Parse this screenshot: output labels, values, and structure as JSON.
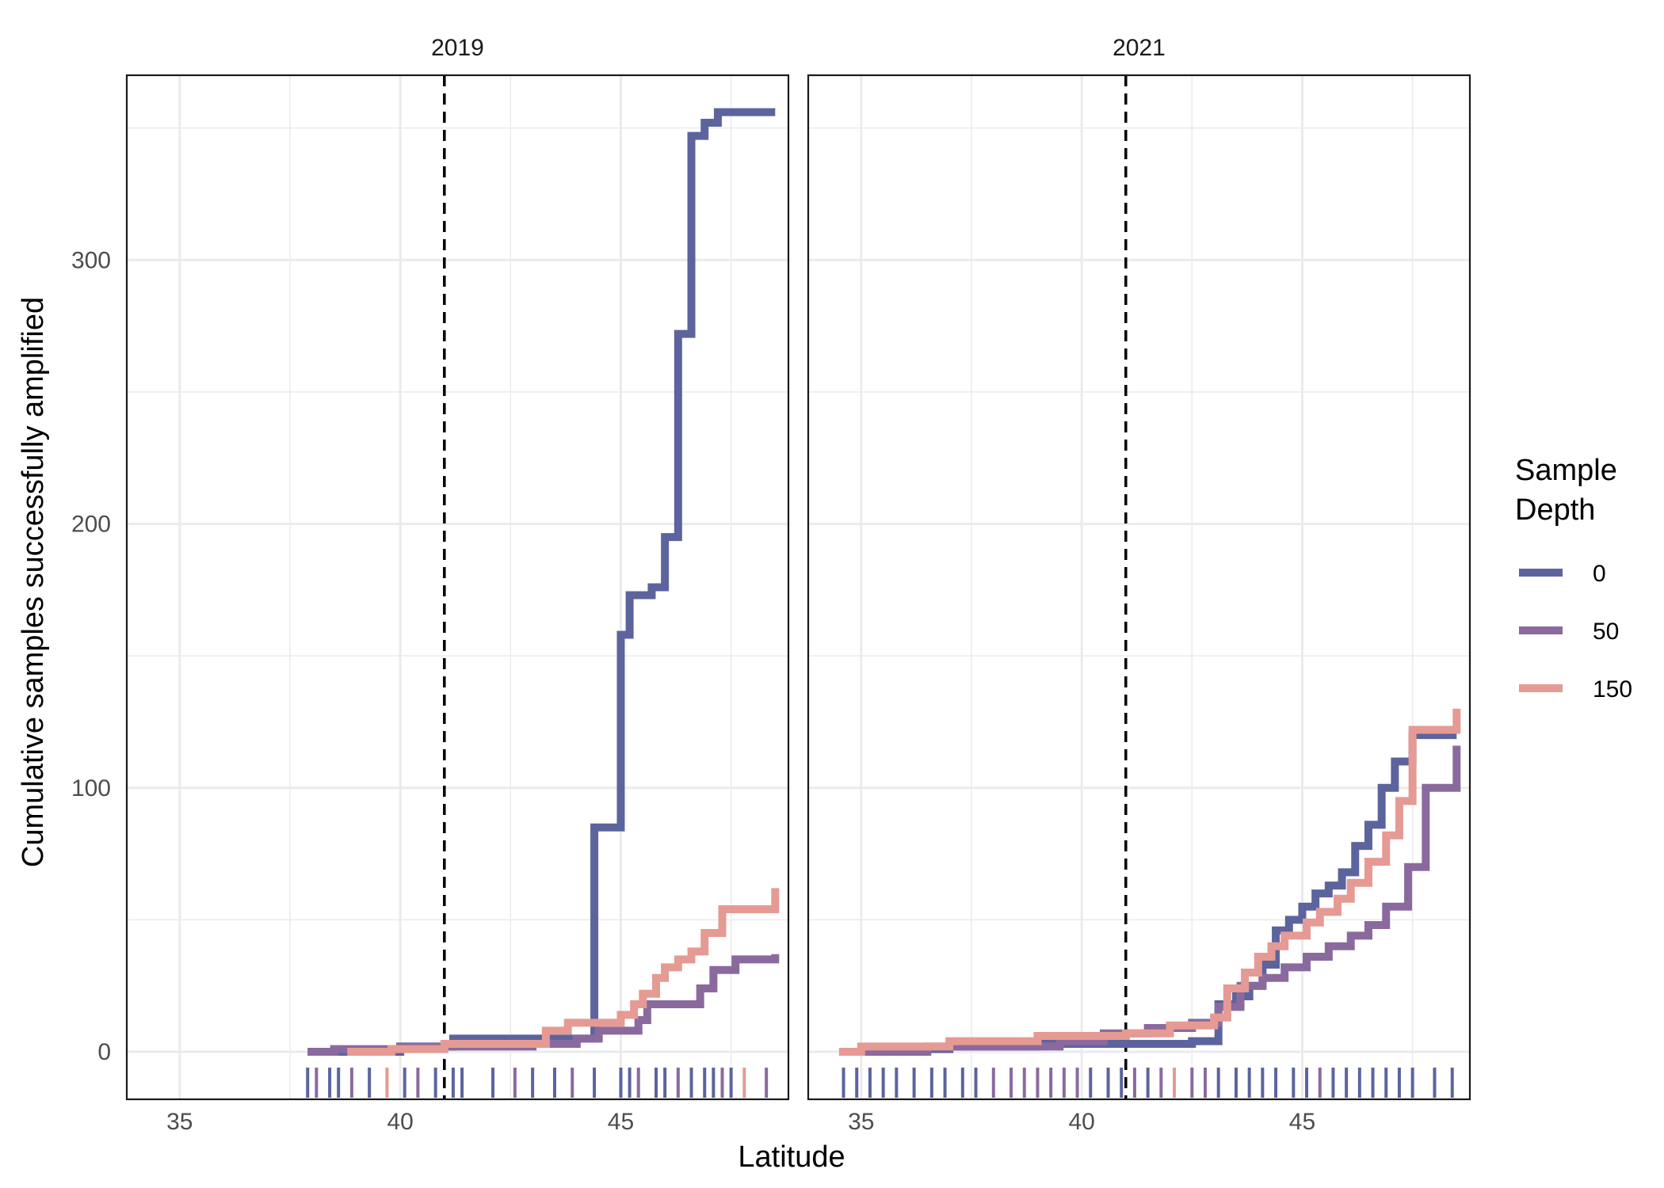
{
  "chart_data": {
    "type": "line",
    "xlabel": "Latitude",
    "ylabel": "Cumulative samples successfully amplified",
    "xlim": [
      33.8,
      48.8
    ],
    "ylim": [
      -18,
      370
    ],
    "x_ticks": [
      35,
      40,
      45
    ],
    "y_ticks": [
      0,
      100,
      200,
      300
    ],
    "grid": true,
    "reference_line": {
      "x": 41.0,
      "style": "dashed",
      "color": "#000000"
    },
    "legend": {
      "title_lines": [
        "Sample",
        "Depth"
      ],
      "position": "right",
      "entries": [
        {
          "name": "0",
          "color": "#5c649e"
        },
        {
          "name": "50",
          "color": "#8a6a9e"
        },
        {
          "name": "150",
          "color": "#e59a94"
        }
      ]
    },
    "panels": [
      {
        "title": "2019",
        "series": [
          {
            "name": "0",
            "color": "#5c649e",
            "step": true,
            "x": [
              37.9,
              40.0,
              41.2,
              44.4,
              45.0,
              45.2,
              45.7,
              46.0,
              46.3,
              46.6,
              46.9,
              47.2,
              48.5
            ],
            "y": [
              0,
              2,
              5,
              85,
              158,
              173,
              176,
              195,
              272,
              347,
              352,
              356,
              356
            ]
          },
          {
            "name": "50",
            "color": "#8a6a9e",
            "step": true,
            "x": [
              37.9,
              38.5,
              40.0,
              43.0,
              44.0,
              44.5,
              45.4,
              45.6,
              46.8,
              47.1,
              47.6,
              48.5
            ],
            "y": [
              0,
              1,
              2,
              3,
              5,
              8,
              12,
              18,
              24,
              31,
              35,
              37
            ]
          },
          {
            "name": "150",
            "color": "#e59a94",
            "step": true,
            "x": [
              38.8,
              39.8,
              41.0,
              43.3,
              43.8,
              45.0,
              45.3,
              45.5,
              45.8,
              46.0,
              46.3,
              46.6,
              46.9,
              47.3,
              48.5
            ],
            "y": [
              0,
              1,
              3,
              8,
              11,
              14,
              18,
              22,
              28,
              32,
              35,
              38,
              45,
              54,
              62
            ]
          }
        ],
        "rug": [
          {
            "x": 37.9,
            "depth": "0"
          },
          {
            "x": 38.1,
            "depth": "50"
          },
          {
            "x": 38.4,
            "depth": "0"
          },
          {
            "x": 38.6,
            "depth": "0"
          },
          {
            "x": 38.9,
            "depth": "50"
          },
          {
            "x": 39.3,
            "depth": "0"
          },
          {
            "x": 39.7,
            "depth": "150"
          },
          {
            "x": 40.1,
            "depth": "0"
          },
          {
            "x": 40.4,
            "depth": "50"
          },
          {
            "x": 40.8,
            "depth": "0"
          },
          {
            "x": 41.2,
            "depth": "0"
          },
          {
            "x": 41.4,
            "depth": "0"
          },
          {
            "x": 42.1,
            "depth": "0"
          },
          {
            "x": 42.6,
            "depth": "50"
          },
          {
            "x": 43.0,
            "depth": "0"
          },
          {
            "x": 43.5,
            "depth": "0"
          },
          {
            "x": 43.9,
            "depth": "50"
          },
          {
            "x": 44.4,
            "depth": "0"
          },
          {
            "x": 45.0,
            "depth": "0"
          },
          {
            "x": 45.2,
            "depth": "0"
          },
          {
            "x": 45.4,
            "depth": "50"
          },
          {
            "x": 45.8,
            "depth": "0"
          },
          {
            "x": 46.0,
            "depth": "0"
          },
          {
            "x": 46.3,
            "depth": "50"
          },
          {
            "x": 46.6,
            "depth": "0"
          },
          {
            "x": 46.9,
            "depth": "0"
          },
          {
            "x": 47.1,
            "depth": "0"
          },
          {
            "x": 47.3,
            "depth": "50"
          },
          {
            "x": 47.5,
            "depth": "0"
          },
          {
            "x": 47.8,
            "depth": "150"
          },
          {
            "x": 48.3,
            "depth": "50"
          }
        ]
      },
      {
        "title": "2021",
        "series": [
          {
            "name": "0",
            "color": "#5c649e",
            "step": true,
            "x": [
              34.5,
              35.5,
              37.0,
              39.0,
              42.5,
              43.1,
              43.5,
              43.8,
              44.1,
              44.4,
              44.7,
              45.0,
              45.3,
              45.6,
              45.9,
              46.2,
              46.5,
              46.8,
              47.1,
              47.5,
              48.5
            ],
            "y": [
              0,
              1,
              2,
              3,
              4,
              18,
              21,
              25,
              33,
              46,
              50,
              55,
              60,
              63,
              68,
              78,
              86,
              100,
              110,
              120,
              120
            ]
          },
          {
            "name": "50",
            "color": "#8a6a9e",
            "step": true,
            "x": [
              34.5,
              36.5,
              39.5,
              40.5,
              41.5,
              42.5,
              43.1,
              43.6,
              44.1,
              44.6,
              45.1,
              45.6,
              46.1,
              46.5,
              46.9,
              47.4,
              47.8,
              48.5
            ],
            "y": [
              0,
              2,
              4,
              7,
              9,
              11,
              17,
              25,
              28,
              32,
              36,
              40,
              44,
              48,
              55,
              70,
              100,
              116
            ]
          },
          {
            "name": "150",
            "color": "#e59a94",
            "step": true,
            "x": [
              34.5,
              35.0,
              37.0,
              39.0,
              41.0,
              42.0,
              43.0,
              43.3,
              43.7,
              44.0,
              44.3,
              44.6,
              45.1,
              45.4,
              45.8,
              46.1,
              46.5,
              46.9,
              47.2,
              47.5,
              48.5
            ],
            "y": [
              0,
              2,
              4,
              6,
              7,
              10,
              13,
              24,
              30,
              36,
              40,
              44,
              49,
              53,
              58,
              64,
              72,
              82,
              95,
              122,
              130
            ]
          }
        ],
        "rug": [
          {
            "x": 34.6,
            "depth": "0"
          },
          {
            "x": 34.9,
            "depth": "0"
          },
          {
            "x": 35.2,
            "depth": "0"
          },
          {
            "x": 35.5,
            "depth": "0"
          },
          {
            "x": 35.8,
            "depth": "0"
          },
          {
            "x": 36.2,
            "depth": "0"
          },
          {
            "x": 36.6,
            "depth": "0"
          },
          {
            "x": 36.9,
            "depth": "0"
          },
          {
            "x": 37.3,
            "depth": "0"
          },
          {
            "x": 37.6,
            "depth": "0"
          },
          {
            "x": 38.0,
            "depth": "50"
          },
          {
            "x": 38.4,
            "depth": "50"
          },
          {
            "x": 38.7,
            "depth": "50"
          },
          {
            "x": 39.0,
            "depth": "50"
          },
          {
            "x": 39.3,
            "depth": "50"
          },
          {
            "x": 39.6,
            "depth": "50"
          },
          {
            "x": 39.9,
            "depth": "50"
          },
          {
            "x": 40.2,
            "depth": "0"
          },
          {
            "x": 40.6,
            "depth": "0"
          },
          {
            "x": 40.9,
            "depth": "0"
          },
          {
            "x": 41.2,
            "depth": "50"
          },
          {
            "x": 41.5,
            "depth": "0"
          },
          {
            "x": 41.8,
            "depth": "50"
          },
          {
            "x": 42.1,
            "depth": "150"
          },
          {
            "x": 42.5,
            "depth": "50"
          },
          {
            "x": 42.8,
            "depth": "50"
          },
          {
            "x": 43.1,
            "depth": "0"
          },
          {
            "x": 43.5,
            "depth": "0"
          },
          {
            "x": 43.8,
            "depth": "0"
          },
          {
            "x": 44.1,
            "depth": "0"
          },
          {
            "x": 44.4,
            "depth": "0"
          },
          {
            "x": 44.8,
            "depth": "0"
          },
          {
            "x": 45.1,
            "depth": "0"
          },
          {
            "x": 45.4,
            "depth": "50"
          },
          {
            "x": 45.7,
            "depth": "0"
          },
          {
            "x": 46.0,
            "depth": "0"
          },
          {
            "x": 46.3,
            "depth": "0"
          },
          {
            "x": 46.6,
            "depth": "0"
          },
          {
            "x": 46.9,
            "depth": "0"
          },
          {
            "x": 47.2,
            "depth": "0"
          },
          {
            "x": 47.5,
            "depth": "0"
          },
          {
            "x": 48.0,
            "depth": "0"
          },
          {
            "x": 48.4,
            "depth": "0"
          }
        ]
      }
    ]
  }
}
